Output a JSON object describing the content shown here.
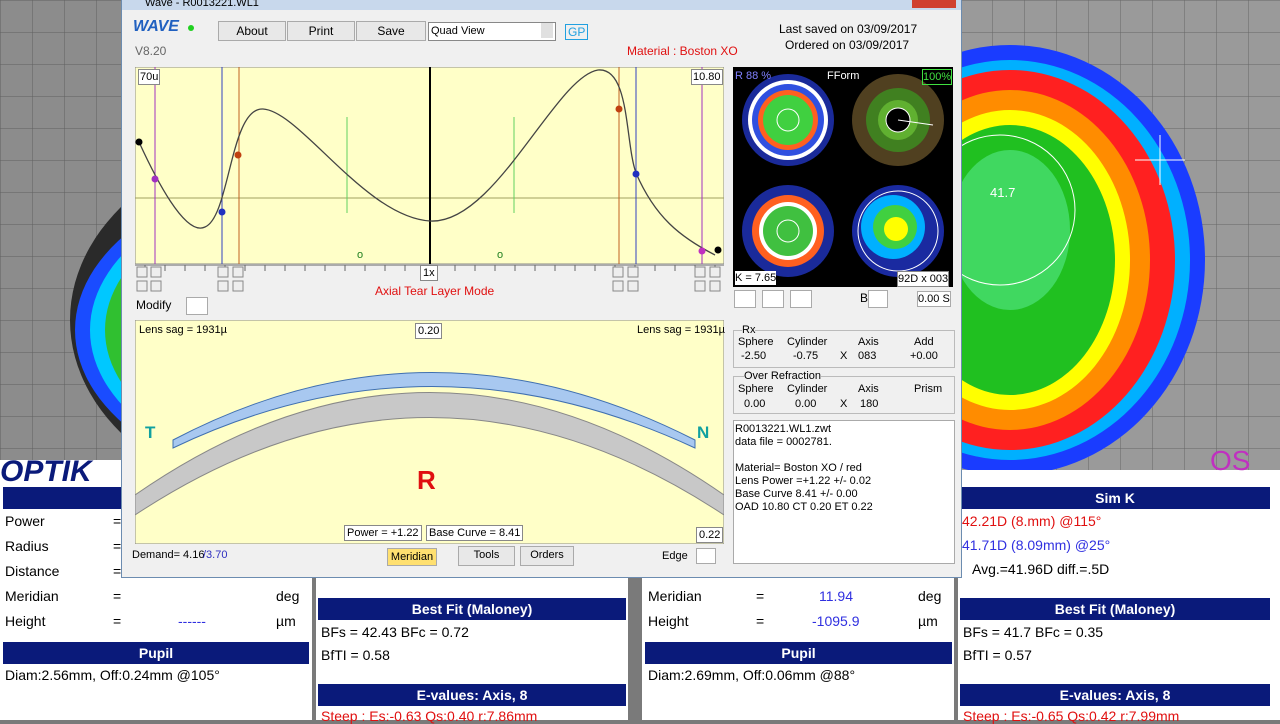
{
  "window": {
    "title": "Wave - R0013221.WL1",
    "logo": "WAVE",
    "version": "V8.20",
    "buttons": [
      "About",
      "Print",
      "Save"
    ],
    "view": "Quad View",
    "gp": "GP",
    "saved": "Last saved on 03/09/2017",
    "ordered": "Ordered on 03/09/2017",
    "material": "Material : Boston XO"
  },
  "graph": {
    "left_label": "70u",
    "right_label": "10.80",
    "zoom": "1x",
    "mode": "Axial Tear Layer Mode",
    "markers": [
      "o",
      "o"
    ],
    "modify": "Modify"
  },
  "lens": {
    "sag_left": "Lens sag = 1931µ",
    "sag_right": "Lens sag = 1931µ",
    "center": "0.20",
    "temporal": "T",
    "nasal": "N",
    "eye": "R",
    "power": "Power = +1.22",
    "base_curve": "Base Curve = 8.41",
    "edge": "0.22",
    "demand": "Demand= 4.16",
    "demand_alt": "/3.70"
  },
  "tabs": [
    "Meridian",
    "Tools",
    "Orders"
  ],
  "edge": "Edge",
  "maps": {
    "r": "R 88 %",
    "form": "FForm",
    "pct": "100%",
    "k": "K = 7.65",
    "d": "92D x 003",
    "b": "B",
    "s": "0.00 S"
  },
  "rx": {
    "title": "Rx",
    "headers": [
      "Sphere",
      "Cylinder",
      "Axis",
      "Add"
    ],
    "values": [
      "-2.50",
      "-0.75",
      "X",
      "083",
      "+0.00"
    ]
  },
  "over_refraction": {
    "title": "Over Refraction",
    "headers": [
      "Sphere",
      "Cylinder",
      "Axis",
      "Prism"
    ],
    "values": [
      "0.00",
      "0.00",
      "X",
      "180"
    ]
  },
  "info": [
    "R0013221.WL1.zwt",
    "data file = 0002781.",
    "Material= Boston XO / red",
    "Lens Power =+1.22 +/- 0.02",
    "Base Curve 8.41 +/- 0.00",
    "OAD 10.80 CT 0.20 ET 0.22"
  ],
  "background": {
    "logo": "OPTIK",
    "eye": "OS",
    "map_value": "41.7"
  },
  "left_panel": {
    "header": "Po",
    "rows": [
      [
        "Power",
        "="
      ],
      [
        "Radius",
        "="
      ],
      [
        "Distance",
        "="
      ],
      [
        "Meridian",
        "=",
        "deg"
      ],
      [
        "Height",
        "=",
        "------",
        "µm"
      ]
    ],
    "pupil_title": "Pupil",
    "pupil": "Diam:2.56mm, Off:0.24mm @105°",
    "best_fit_title": "Best Fit (Maloney)",
    "best_fit": [
      "BFs = 42.43 BFc = 0.72",
      "BfTI = 0.58"
    ],
    "evalues_title": "E-values: Axis, 8",
    "evalues": "Steep : Es:-0.63 Qs:0.40 r:7.86mm"
  },
  "right_panel": {
    "rows": [
      [
        "Meridian",
        "=",
        "11.94",
        "deg"
      ],
      [
        "Height",
        "=",
        "-1095.9",
        "µm"
      ]
    ],
    "pupil_title": "Pupil",
    "pupil": "Diam:2.69mm, Off:0.06mm @88°",
    "simk_title": "Sim K",
    "simk": [
      "42.21D (8.mm) @115°",
      "41.71D (8.09mm) @25°",
      "Avg.=41.96D diff.=.5D"
    ],
    "best_fit_title": "Best Fit (Maloney)",
    "best_fit": [
      "BFs = 41.7 BFc = 0.35",
      "BfTI = 0.57"
    ],
    "evalues_title": "E-values: Axis, 8",
    "evalues": "Steep : Es:-0.65 Qs:0.42 r:7.99mm"
  }
}
